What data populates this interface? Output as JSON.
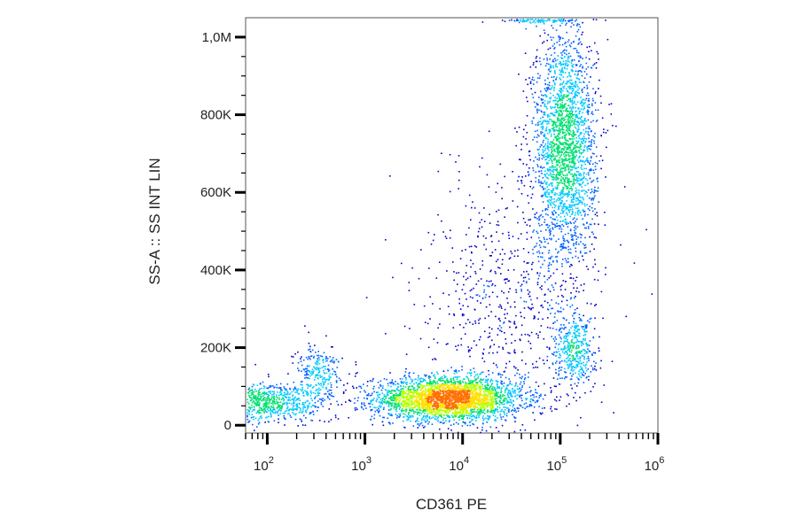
{
  "chart_data": {
    "type": "scatter",
    "subtype": "flow-cytometry-density-dot-plot",
    "xlabel": "CD361 PE",
    "ylabel": "SS-A :: SS INT LIN",
    "x_scale": "log",
    "y_scale": "linear",
    "xlim": [
      60,
      1000000
    ],
    "ylim": [
      -20000,
      1050000
    ],
    "x_ticks": [
      {
        "value": 100,
        "base": "10",
        "exp": "2"
      },
      {
        "value": 1000,
        "base": "10",
        "exp": "3"
      },
      {
        "value": 10000,
        "base": "10",
        "exp": "4"
      },
      {
        "value": 100000,
        "base": "10",
        "exp": "5"
      },
      {
        "value": 1000000,
        "base": "10",
        "exp": "6"
      }
    ],
    "y_ticks": [
      {
        "value": 0,
        "label": "0"
      },
      {
        "value": 200000,
        "label": "200K"
      },
      {
        "value": 400000,
        "label": "400K"
      },
      {
        "value": 600000,
        "label": "600K"
      },
      {
        "value": 800000,
        "label": "800K"
      },
      {
        "value": 1000000,
        "label": "1,0M"
      }
    ],
    "color_scale": [
      "#0000cc",
      "#0060ff",
      "#00c8ff",
      "#00e070",
      "#b8ff00",
      "#ffe000",
      "#ff7000",
      "#dd0000"
    ],
    "grid": false,
    "legend": "none",
    "populations": [
      {
        "x_center": 7000,
        "y_center": 70000,
        "x_spread_decades": 0.38,
        "y_spread": 28000,
        "points": 3000
      },
      {
        "x_center": 110000,
        "y_center": 720000,
        "x_spread_decades": 0.16,
        "y_spread": 150000,
        "points": 2400
      },
      {
        "x_center": 100,
        "y_center": 60000,
        "x_spread_decades": 0.3,
        "y_spread": 26000,
        "points": 800
      },
      {
        "x_center": 330,
        "y_center": 140000,
        "x_spread_decades": 0.12,
        "y_spread": 35000,
        "points": 250
      },
      {
        "x_center": 140000,
        "y_center": 190000,
        "x_spread_decades": 0.1,
        "y_spread": 45000,
        "points": 400
      },
      {
        "x_center": 30000,
        "y_center": 320000,
        "x_spread_decades": 0.45,
        "y_spread": 170000,
        "points": 700
      },
      {
        "x_center": 70000,
        "y_center": 1045000,
        "x_spread_decades": 0.2,
        "y_spread": 3000,
        "points": 120
      }
    ]
  }
}
